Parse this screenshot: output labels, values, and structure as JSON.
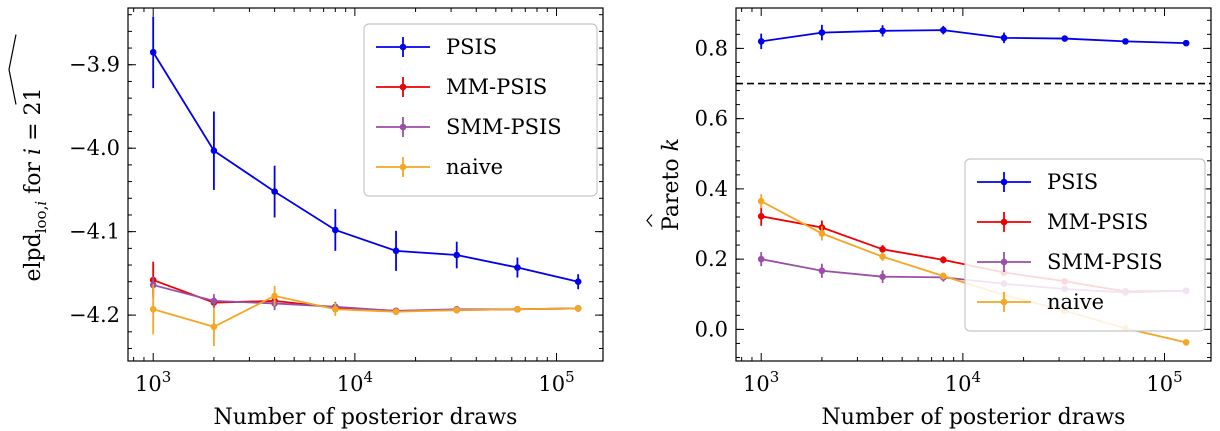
{
  "chart_data": [
    {
      "type": "line",
      "xlabel": "Number of posterior draws",
      "ylabel_parts": {
        "base": "elpd",
        "sub": "loo,",
        "index": "i",
        "tail": " for ",
        "var": "i",
        "eq": " = 21"
      },
      "xscale": "log",
      "xlim": [
        750,
        170000
      ],
      "ylim": [
        -4.255,
        -3.832
      ],
      "x_ticks": [
        {
          "value": 1000,
          "label": "10",
          "exp": "3"
        },
        {
          "value": 10000,
          "label": "10",
          "exp": "4"
        },
        {
          "value": 100000,
          "label": "10",
          "exp": "5"
        }
      ],
      "y_ticks": [
        {
          "value": -3.9,
          "label": "−3.9"
        },
        {
          "value": -4.0,
          "label": "−4.0"
        },
        {
          "value": -4.1,
          "label": "−4.1"
        },
        {
          "value": -4.2,
          "label": "−4.2"
        }
      ],
      "legend_position": "top-right",
      "x": [
        1000,
        2000,
        4000,
        8000,
        16000,
        32000,
        64000,
        128000
      ],
      "series": [
        {
          "name": "PSIS",
          "color": "#0000ee",
          "values": [
            -3.885,
            -4.003,
            -4.052,
            -4.098,
            -4.123,
            -4.128,
            -4.143,
            -4.16
          ],
          "errors": [
            0.043,
            0.047,
            0.031,
            0.025,
            0.024,
            0.016,
            0.012,
            0.009
          ]
        },
        {
          "name": "MM-PSIS",
          "color": "#ee0000",
          "values": [
            -4.158,
            -4.185,
            -4.183,
            -4.191,
            -4.195,
            -4.194,
            -4.193,
            -4.192
          ],
          "errors": [
            0.022,
            0.006,
            0.008,
            0.005,
            0.003,
            0.003,
            0.003,
            0.002
          ]
        },
        {
          "name": "SMM-PSIS",
          "color": "#9b4ea8",
          "values": [
            -4.164,
            -4.183,
            -4.186,
            -4.19,
            -4.195,
            -4.193,
            -4.193,
            -4.192
          ],
          "errors": [
            0.01,
            0.008,
            0.008,
            0.006,
            0.003,
            0.003,
            0.002,
            0.002
          ]
        },
        {
          "name": "naive",
          "color": "#f5a623",
          "values": [
            -4.193,
            -4.214,
            -4.177,
            -4.193,
            -4.196,
            -4.194,
            -4.193,
            -4.192
          ],
          "errors": [
            0.03,
            0.023,
            0.012,
            0.008,
            0.004,
            0.003,
            0.002,
            0.002
          ]
        }
      ]
    },
    {
      "type": "line",
      "xlabel": "Number of posterior draws",
      "ylabel_parts": {
        "base": "Pareto ",
        "var": "k"
      },
      "xscale": "log",
      "xlim": [
        750,
        170000
      ],
      "ylim": [
        -0.09,
        0.915
      ],
      "x_ticks": [
        {
          "value": 1000,
          "label": "10",
          "exp": "3"
        },
        {
          "value": 10000,
          "label": "10",
          "exp": "4"
        },
        {
          "value": 100000,
          "label": "10",
          "exp": "5"
        }
      ],
      "y_ticks": [
        {
          "value": 0.0,
          "label": "0.0"
        },
        {
          "value": 0.2,
          "label": "0.2"
        },
        {
          "value": 0.4,
          "label": "0.4"
        },
        {
          "value": 0.6,
          "label": "0.6"
        },
        {
          "value": 0.8,
          "label": "0.8"
        }
      ],
      "reference_line": {
        "y": 0.7,
        "style": "dashed",
        "color": "#000000"
      },
      "legend_position": "center-right",
      "x": [
        1000,
        2000,
        4000,
        8000,
        16000,
        32000,
        64000,
        128000
      ],
      "series": [
        {
          "name": "PSIS",
          "color": "#0000ee",
          "values": [
            0.82,
            0.845,
            0.85,
            0.852,
            0.83,
            0.828,
            0.82,
            0.815
          ],
          "errors": [
            0.022,
            0.022,
            0.016,
            0.012,
            0.015,
            0.008,
            0.007,
            0.006
          ]
        },
        {
          "name": "MM-PSIS",
          "color": "#ee0000",
          "values": [
            0.322,
            0.29,
            0.228,
            0.198,
            0.162,
            0.137,
            0.108,
            0.11
          ],
          "errors": [
            0.027,
            0.02,
            0.012,
            0.01,
            0.007,
            0.006,
            0.006,
            0.005
          ]
        },
        {
          "name": "SMM-PSIS",
          "color": "#9b4ea8",
          "values": [
            0.2,
            0.167,
            0.15,
            0.148,
            0.13,
            0.115,
            0.105,
            0.11
          ],
          "errors": [
            0.02,
            0.02,
            0.018,
            0.012,
            0.01,
            0.008,
            0.006,
            0.005
          ]
        },
        {
          "name": "naive",
          "color": "#f5a623",
          "values": [
            0.365,
            0.273,
            0.207,
            0.152,
            0.098,
            0.053,
            0.003,
            -0.037
          ],
          "errors": [
            0.02,
            0.02,
            0.012,
            0.01,
            0.007,
            0.005,
            0.005,
            0.005
          ]
        }
      ]
    }
  ]
}
